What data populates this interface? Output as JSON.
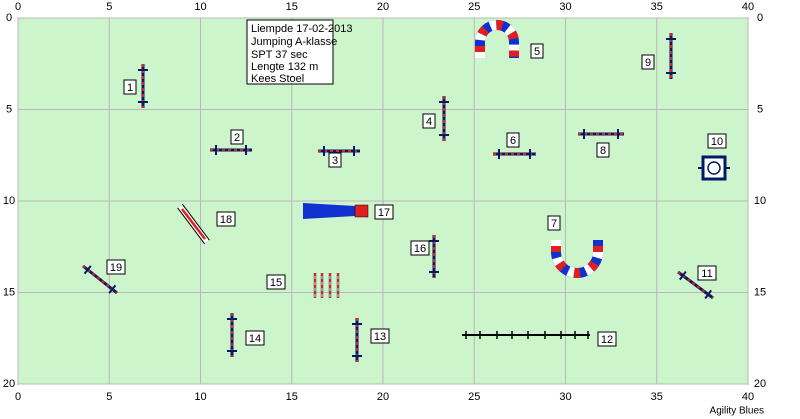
{
  "info": {
    "lines": [
      "Liempde 17-02-2013",
      "Jumping A-klasse",
      "SPT 37 sec",
      "Lengte 132 m",
      "Kees Stoel"
    ]
  },
  "axes": {
    "xticks": [
      0,
      5,
      10,
      15,
      20,
      25,
      30,
      35,
      40
    ],
    "yticks": [
      0,
      5,
      10,
      15,
      20
    ]
  },
  "obstacles": [
    "1",
    "2",
    "3",
    "4",
    "5",
    "6",
    "7",
    "8",
    "9",
    "10",
    "11",
    "12",
    "13",
    "14",
    "15",
    "16",
    "17",
    "18",
    "19"
  ],
  "footer": "Agility Blues"
}
